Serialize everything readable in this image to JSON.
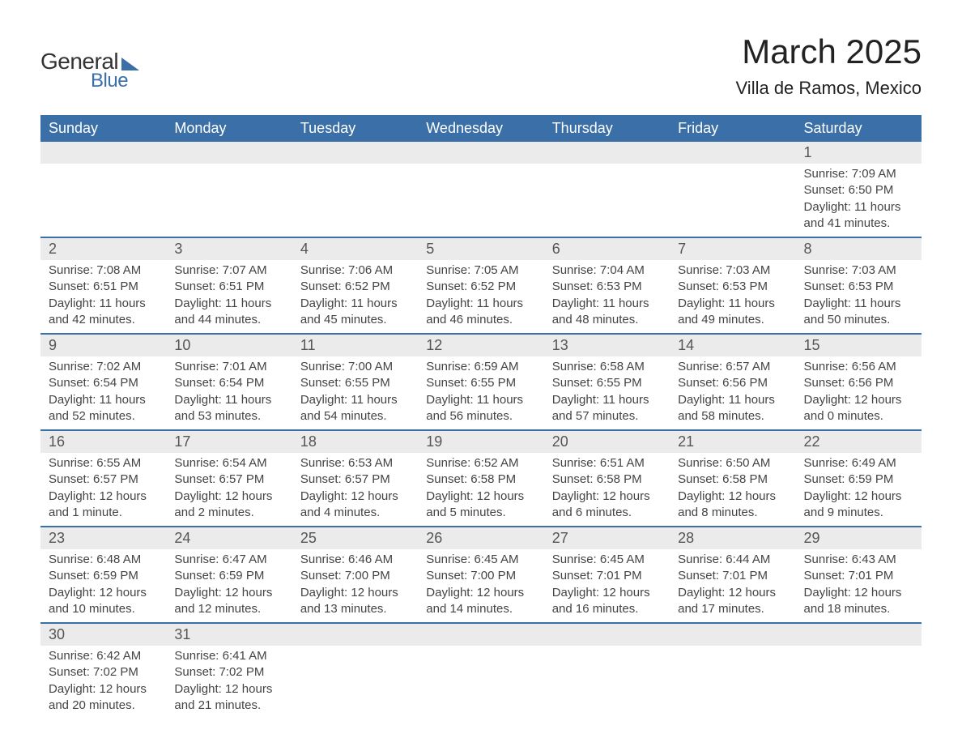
{
  "logo": {
    "text_general": "General",
    "text_blue": "Blue"
  },
  "title": "March 2025",
  "location": "Villa de Ramos, Mexico",
  "colors": {
    "header_bg": "#3a6fa8",
    "header_text": "#ffffff",
    "daynum_bg": "#ebebeb",
    "text": "#444444",
    "border": "#3a6fa8"
  },
  "day_headers": [
    "Sunday",
    "Monday",
    "Tuesday",
    "Wednesday",
    "Thursday",
    "Friday",
    "Saturday"
  ],
  "weeks": [
    {
      "days": [
        {
          "num": "",
          "sunrise": "",
          "sunset": "",
          "daylight1": "",
          "daylight2": ""
        },
        {
          "num": "",
          "sunrise": "",
          "sunset": "",
          "daylight1": "",
          "daylight2": ""
        },
        {
          "num": "",
          "sunrise": "",
          "sunset": "",
          "daylight1": "",
          "daylight2": ""
        },
        {
          "num": "",
          "sunrise": "",
          "sunset": "",
          "daylight1": "",
          "daylight2": ""
        },
        {
          "num": "",
          "sunrise": "",
          "sunset": "",
          "daylight1": "",
          "daylight2": ""
        },
        {
          "num": "",
          "sunrise": "",
          "sunset": "",
          "daylight1": "",
          "daylight2": ""
        },
        {
          "num": "1",
          "sunrise": "Sunrise: 7:09 AM",
          "sunset": "Sunset: 6:50 PM",
          "daylight1": "Daylight: 11 hours",
          "daylight2": "and 41 minutes."
        }
      ]
    },
    {
      "days": [
        {
          "num": "2",
          "sunrise": "Sunrise: 7:08 AM",
          "sunset": "Sunset: 6:51 PM",
          "daylight1": "Daylight: 11 hours",
          "daylight2": "and 42 minutes."
        },
        {
          "num": "3",
          "sunrise": "Sunrise: 7:07 AM",
          "sunset": "Sunset: 6:51 PM",
          "daylight1": "Daylight: 11 hours",
          "daylight2": "and 44 minutes."
        },
        {
          "num": "4",
          "sunrise": "Sunrise: 7:06 AM",
          "sunset": "Sunset: 6:52 PM",
          "daylight1": "Daylight: 11 hours",
          "daylight2": "and 45 minutes."
        },
        {
          "num": "5",
          "sunrise": "Sunrise: 7:05 AM",
          "sunset": "Sunset: 6:52 PM",
          "daylight1": "Daylight: 11 hours",
          "daylight2": "and 46 minutes."
        },
        {
          "num": "6",
          "sunrise": "Sunrise: 7:04 AM",
          "sunset": "Sunset: 6:53 PM",
          "daylight1": "Daylight: 11 hours",
          "daylight2": "and 48 minutes."
        },
        {
          "num": "7",
          "sunrise": "Sunrise: 7:03 AM",
          "sunset": "Sunset: 6:53 PM",
          "daylight1": "Daylight: 11 hours",
          "daylight2": "and 49 minutes."
        },
        {
          "num": "8",
          "sunrise": "Sunrise: 7:03 AM",
          "sunset": "Sunset: 6:53 PM",
          "daylight1": "Daylight: 11 hours",
          "daylight2": "and 50 minutes."
        }
      ]
    },
    {
      "days": [
        {
          "num": "9",
          "sunrise": "Sunrise: 7:02 AM",
          "sunset": "Sunset: 6:54 PM",
          "daylight1": "Daylight: 11 hours",
          "daylight2": "and 52 minutes."
        },
        {
          "num": "10",
          "sunrise": "Sunrise: 7:01 AM",
          "sunset": "Sunset: 6:54 PM",
          "daylight1": "Daylight: 11 hours",
          "daylight2": "and 53 minutes."
        },
        {
          "num": "11",
          "sunrise": "Sunrise: 7:00 AM",
          "sunset": "Sunset: 6:55 PM",
          "daylight1": "Daylight: 11 hours",
          "daylight2": "and 54 minutes."
        },
        {
          "num": "12",
          "sunrise": "Sunrise: 6:59 AM",
          "sunset": "Sunset: 6:55 PM",
          "daylight1": "Daylight: 11 hours",
          "daylight2": "and 56 minutes."
        },
        {
          "num": "13",
          "sunrise": "Sunrise: 6:58 AM",
          "sunset": "Sunset: 6:55 PM",
          "daylight1": "Daylight: 11 hours",
          "daylight2": "and 57 minutes."
        },
        {
          "num": "14",
          "sunrise": "Sunrise: 6:57 AM",
          "sunset": "Sunset: 6:56 PM",
          "daylight1": "Daylight: 11 hours",
          "daylight2": "and 58 minutes."
        },
        {
          "num": "15",
          "sunrise": "Sunrise: 6:56 AM",
          "sunset": "Sunset: 6:56 PM",
          "daylight1": "Daylight: 12 hours",
          "daylight2": "and 0 minutes."
        }
      ]
    },
    {
      "days": [
        {
          "num": "16",
          "sunrise": "Sunrise: 6:55 AM",
          "sunset": "Sunset: 6:57 PM",
          "daylight1": "Daylight: 12 hours",
          "daylight2": "and 1 minute."
        },
        {
          "num": "17",
          "sunrise": "Sunrise: 6:54 AM",
          "sunset": "Sunset: 6:57 PM",
          "daylight1": "Daylight: 12 hours",
          "daylight2": "and 2 minutes."
        },
        {
          "num": "18",
          "sunrise": "Sunrise: 6:53 AM",
          "sunset": "Sunset: 6:57 PM",
          "daylight1": "Daylight: 12 hours",
          "daylight2": "and 4 minutes."
        },
        {
          "num": "19",
          "sunrise": "Sunrise: 6:52 AM",
          "sunset": "Sunset: 6:58 PM",
          "daylight1": "Daylight: 12 hours",
          "daylight2": "and 5 minutes."
        },
        {
          "num": "20",
          "sunrise": "Sunrise: 6:51 AM",
          "sunset": "Sunset: 6:58 PM",
          "daylight1": "Daylight: 12 hours",
          "daylight2": "and 6 minutes."
        },
        {
          "num": "21",
          "sunrise": "Sunrise: 6:50 AM",
          "sunset": "Sunset: 6:58 PM",
          "daylight1": "Daylight: 12 hours",
          "daylight2": "and 8 minutes."
        },
        {
          "num": "22",
          "sunrise": "Sunrise: 6:49 AM",
          "sunset": "Sunset: 6:59 PM",
          "daylight1": "Daylight: 12 hours",
          "daylight2": "and 9 minutes."
        }
      ]
    },
    {
      "days": [
        {
          "num": "23",
          "sunrise": "Sunrise: 6:48 AM",
          "sunset": "Sunset: 6:59 PM",
          "daylight1": "Daylight: 12 hours",
          "daylight2": "and 10 minutes."
        },
        {
          "num": "24",
          "sunrise": "Sunrise: 6:47 AM",
          "sunset": "Sunset: 6:59 PM",
          "daylight1": "Daylight: 12 hours",
          "daylight2": "and 12 minutes."
        },
        {
          "num": "25",
          "sunrise": "Sunrise: 6:46 AM",
          "sunset": "Sunset: 7:00 PM",
          "daylight1": "Daylight: 12 hours",
          "daylight2": "and 13 minutes."
        },
        {
          "num": "26",
          "sunrise": "Sunrise: 6:45 AM",
          "sunset": "Sunset: 7:00 PM",
          "daylight1": "Daylight: 12 hours",
          "daylight2": "and 14 minutes."
        },
        {
          "num": "27",
          "sunrise": "Sunrise: 6:45 AM",
          "sunset": "Sunset: 7:01 PM",
          "daylight1": "Daylight: 12 hours",
          "daylight2": "and 16 minutes."
        },
        {
          "num": "28",
          "sunrise": "Sunrise: 6:44 AM",
          "sunset": "Sunset: 7:01 PM",
          "daylight1": "Daylight: 12 hours",
          "daylight2": "and 17 minutes."
        },
        {
          "num": "29",
          "sunrise": "Sunrise: 6:43 AM",
          "sunset": "Sunset: 7:01 PM",
          "daylight1": "Daylight: 12 hours",
          "daylight2": "and 18 minutes."
        }
      ]
    },
    {
      "days": [
        {
          "num": "30",
          "sunrise": "Sunrise: 6:42 AM",
          "sunset": "Sunset: 7:02 PM",
          "daylight1": "Daylight: 12 hours",
          "daylight2": "and 20 minutes."
        },
        {
          "num": "31",
          "sunrise": "Sunrise: 6:41 AM",
          "sunset": "Sunset: 7:02 PM",
          "daylight1": "Daylight: 12 hours",
          "daylight2": "and 21 minutes."
        },
        {
          "num": "",
          "sunrise": "",
          "sunset": "",
          "daylight1": "",
          "daylight2": ""
        },
        {
          "num": "",
          "sunrise": "",
          "sunset": "",
          "daylight1": "",
          "daylight2": ""
        },
        {
          "num": "",
          "sunrise": "",
          "sunset": "",
          "daylight1": "",
          "daylight2": ""
        },
        {
          "num": "",
          "sunrise": "",
          "sunset": "",
          "daylight1": "",
          "daylight2": ""
        },
        {
          "num": "",
          "sunrise": "",
          "sunset": "",
          "daylight1": "",
          "daylight2": ""
        }
      ]
    }
  ]
}
